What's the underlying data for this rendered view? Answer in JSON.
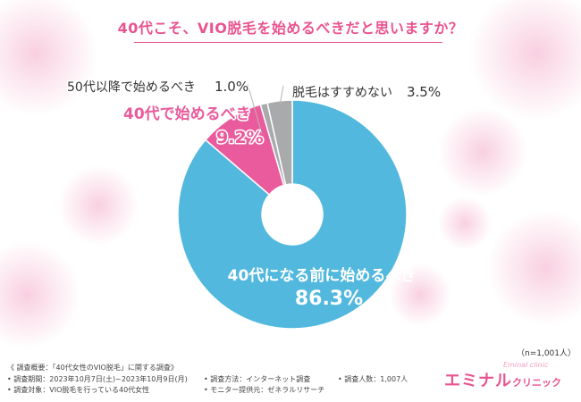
{
  "title": "40代こそ、VIO脱毛を始めるべきだと思いますか？",
  "chart_data": {
    "type": "pie",
    "donut": true,
    "categories": [
      "40代になる前に始めるべき",
      "40代で始めるべき",
      "50代以降で始めるべき",
      "脱毛はすすめない"
    ],
    "values": [
      86.3,
      9.2,
      1.0,
      3.5
    ],
    "value_labels": [
      "86.3%",
      "9.2%",
      "1.0%",
      "3.5%"
    ],
    "colors": [
      "#52b8de",
      "#e95b9c",
      "#a9aaac",
      "#a9aaac"
    ]
  },
  "n_note": "（n=1,001人）",
  "survey": {
    "overview": "《 調査概要：「40代女性のVIO脱毛」に関する調査》",
    "period": "• 調査期間：2023年10月7日(土)~2023年10月9日(月)",
    "method": "• 調査方法：インターネット調査",
    "count": "• 調査人数：1,007人",
    "target": "• 調査対象：VIO脱毛を行っている40代女性",
    "provider": "• モニター提供元：ゼネラルリサーチ"
  },
  "logo": {
    "main": "エミナル",
    "sub": "クリニック",
    "en": "Eminal clinic"
  }
}
